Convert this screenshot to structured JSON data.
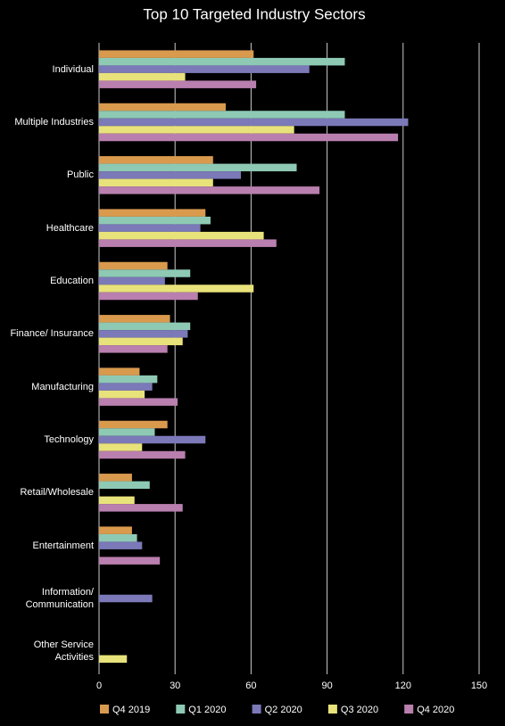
{
  "chart_data": {
    "type": "hbar",
    "title": "Top 10 Targeted Industry Sectors",
    "categories": [
      "Individual",
      "Multiple Industries",
      "Public",
      "Healthcare",
      "Education",
      "Finance/ Insurance",
      "Manufacturing",
      "Technology",
      "Retail/Wholesale",
      "Entertainment",
      "Information/ Communication",
      "Other Service Activities"
    ],
    "series": [
      {
        "name": "Q4 2019",
        "color": "#d99a4e",
        "values": [
          61,
          50,
          45,
          42,
          27,
          28,
          16,
          27,
          13,
          13,
          null,
          null
        ]
      },
      {
        "name": "Q1 2020",
        "color": "#8ec9b4",
        "values": [
          97,
          97,
          78,
          44,
          36,
          36,
          23,
          22,
          20,
          15,
          null,
          null
        ]
      },
      {
        "name": "Q2 2020",
        "color": "#7b79b8",
        "values": [
          83,
          122,
          56,
          40,
          26,
          35,
          21,
          42,
          null,
          17,
          21,
          null
        ]
      },
      {
        "name": "Q3 2020",
        "color": "#e8e27a",
        "values": [
          34,
          77,
          45,
          65,
          61,
          33,
          18,
          17,
          14,
          null,
          null,
          11
        ]
      },
      {
        "name": "Q4 2020",
        "color": "#b97fae",
        "values": [
          62,
          118,
          87,
          70,
          39,
          27,
          31,
          34,
          33,
          24,
          null,
          null
        ]
      }
    ],
    "xlim": [
      0,
      150
    ],
    "xticks": [
      0,
      30,
      60,
      90,
      120,
      150
    ],
    "grid": true
  }
}
